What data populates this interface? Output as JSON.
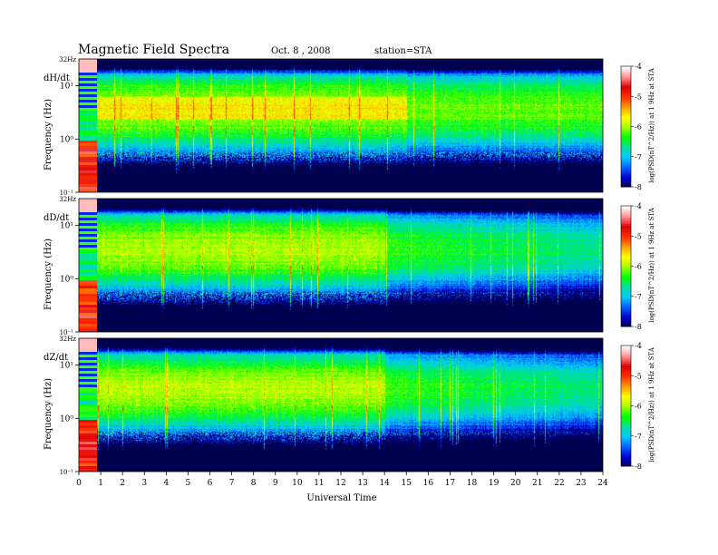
{
  "header": {
    "title": "Magnetic Field Spectra",
    "date": "Oct. 8 , 2008",
    "station": "station=STA"
  },
  "chart_data": {
    "type": "heatmap",
    "xlabel": "Universal Time",
    "x_ticks": [
      "0",
      "1",
      "2",
      "3",
      "4",
      "5",
      "6",
      "7",
      "8",
      "9",
      "10",
      "11",
      "12",
      "13",
      "14",
      "15",
      "16",
      "17",
      "18",
      "19",
      "20",
      "21",
      "22",
      "23",
      "24"
    ],
    "xlim": [
      0,
      24
    ],
    "ylabel": "Frequency (Hz)",
    "ylim_hz": [
      0.1,
      32
    ],
    "y_scale": "log",
    "colorbar": {
      "label": "log(PSD(nT^2/Hz)) at 1 9Hz at STA",
      "range": [
        -8,
        -4
      ],
      "ticks": [
        "-4",
        "-5",
        "-6",
        "-7",
        "-8"
      ],
      "colors": [
        "#000050",
        "#0000d0",
        "#0060ff",
        "#00c8ff",
        "#00e0a0",
        "#00ff00",
        "#a0ff00",
        "#ffff00",
        "#ffa000",
        "#ff3000",
        "#e00000",
        "#ff9090",
        "#ffffff"
      ]
    },
    "panels": [
      {
        "component": "dH/dt",
        "top_label": "32Hz",
        "y_ticks": [
          "10¹",
          "10⁰",
          "10⁻¹"
        ]
      },
      {
        "component": "dD/dt",
        "top_label": "32Hz",
        "y_ticks": [
          "10¹",
          "10⁰",
          "10⁻¹"
        ]
      },
      {
        "component": "dZ/dt",
        "top_label": "32Hz",
        "y_ticks": [
          "10¹",
          "10⁰",
          "10⁻¹"
        ]
      }
    ]
  }
}
